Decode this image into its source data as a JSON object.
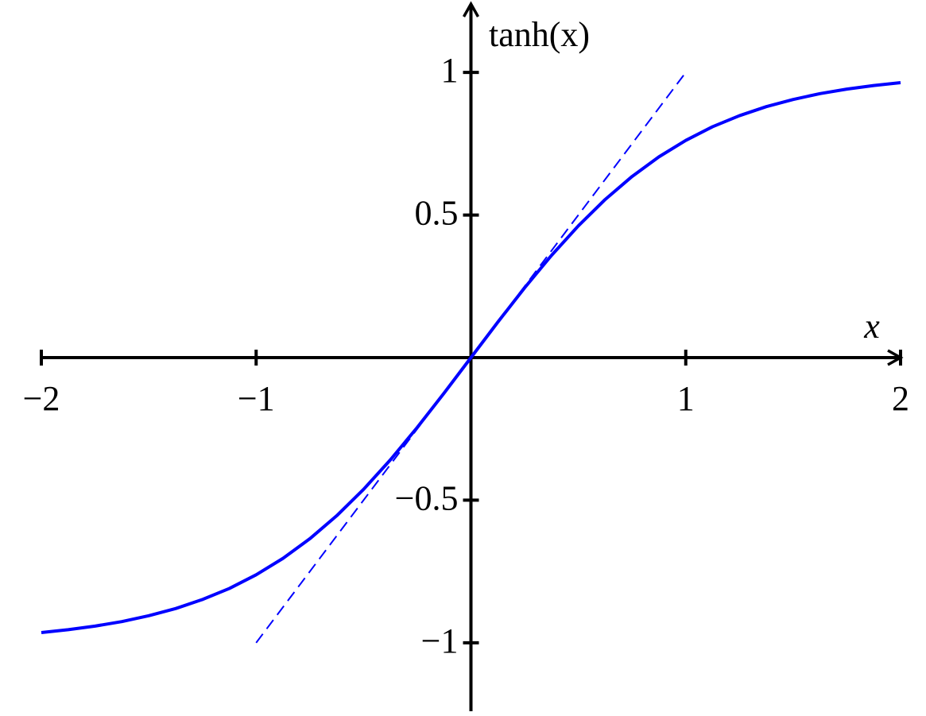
{
  "chart_data": {
    "type": "line",
    "xlabel": "x",
    "ylabel": "tanh(x)",
    "xlim": [
      -2,
      2
    ],
    "ylim": [
      -1.24,
      1.24
    ],
    "xticks": [
      {
        "value": -2,
        "label": "−2"
      },
      {
        "value": -1,
        "label": "−1"
      },
      1,
      2
    ],
    "yticks": [
      {
        "value": -1,
        "label": "−1"
      },
      {
        "value": -0.5,
        "label": "−0.5"
      },
      0.5,
      1
    ],
    "series": [
      {
        "color": "#0000ff",
        "dashed": false,
        "x": [
          -2,
          -1.875,
          -1.75,
          -1.625,
          -1.5,
          -1.375,
          -1.25,
          -1.125,
          -1,
          -0.875,
          -0.75,
          -0.625,
          -0.5,
          -0.375,
          -0.25,
          -0.125,
          0,
          0.125,
          0.25,
          0.375,
          0.5,
          0.625,
          0.75,
          0.875,
          1,
          1.125,
          1.25,
          1.375,
          1.5,
          1.625,
          1.75,
          1.875,
          2
        ],
        "values": [
          -0.964,
          -0.9541,
          -0.9414,
          -0.9257,
          -0.9051,
          -0.88,
          -0.8483,
          -0.8096,
          -0.7616,
          -0.7039,
          -0.6351,
          -0.5546,
          -0.4621,
          -0.3584,
          -0.2449,
          -0.1244,
          0,
          0.1244,
          0.2449,
          0.3584,
          0.4621,
          0.5546,
          0.6351,
          0.7039,
          0.7616,
          0.8096,
          0.8483,
          0.88,
          0.9051,
          0.9257,
          0.9414,
          0.9541,
          0.964
        ]
      },
      {
        "color": "#0000ff",
        "dashed": true,
        "x": [
          -1,
          1
        ],
        "values": [
          -1,
          1
        ]
      }
    ]
  }
}
